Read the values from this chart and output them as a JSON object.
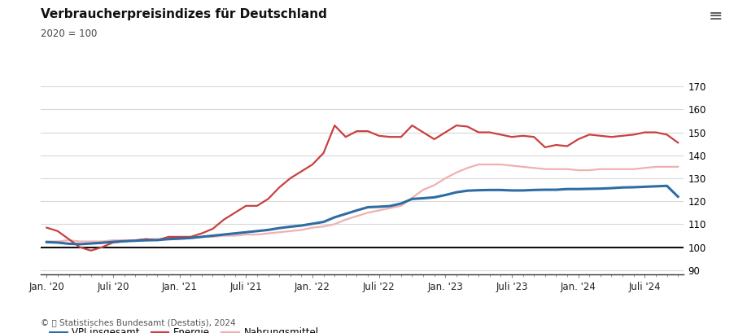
{
  "title": "Verbraucherpreisindizes für Deutschland",
  "subtitle": "2020 = 100",
  "ylim": [
    88,
    175
  ],
  "yticks": [
    90,
    100,
    110,
    120,
    130,
    140,
    150,
    160,
    170
  ],
  "bg_color": "#ffffff",
  "grid_color": "#d8d8d8",
  "vpi_color": "#2e6da4",
  "energie_color": "#c94040",
  "nahrung_color": "#f0b0b0",
  "line_color_100": "#111111",
  "legend_labels": [
    "VPI insgesamt",
    "Energie",
    "Nahrungsmittel"
  ],
  "vpi": [
    102.2,
    102.0,
    101.5,
    101.3,
    101.6,
    101.9,
    102.3,
    102.6,
    102.8,
    103.0,
    103.1,
    103.5,
    103.7,
    104.0,
    104.5,
    105.0,
    105.5,
    106.0,
    106.5,
    107.0,
    107.5,
    108.3,
    108.9,
    109.4,
    110.2,
    111.0,
    113.0,
    114.5,
    116.0,
    117.4,
    117.6,
    117.9,
    119.0,
    121.0,
    121.3,
    121.7,
    122.7,
    123.9,
    124.6,
    124.8,
    124.9,
    124.9,
    124.7,
    124.7,
    124.9,
    125.0,
    125.0,
    125.3,
    125.3,
    125.4,
    125.5,
    125.7,
    126.0,
    126.1,
    126.3,
    126.5,
    126.7,
    122.0
  ],
  "energie": [
    108.5,
    107.0,
    103.5,
    100.0,
    98.5,
    100.0,
    102.0,
    102.5,
    103.0,
    103.5,
    103.0,
    104.5,
    104.5,
    104.5,
    106.0,
    108.0,
    112.0,
    115.0,
    118.0,
    118.0,
    121.0,
    126.0,
    130.0,
    133.0,
    136.0,
    141.0,
    153.0,
    148.0,
    150.5,
    150.5,
    148.5,
    148.0,
    148.0,
    153.0,
    150.0,
    147.0,
    150.0,
    153.0,
    152.5,
    150.0,
    150.0,
    149.0,
    148.0,
    148.5,
    148.0,
    143.5,
    144.5,
    144.0,
    147.0,
    149.0,
    148.5,
    148.0,
    148.5,
    149.0,
    150.0,
    150.0,
    149.0,
    145.5
  ],
  "nahrung": [
    102.5,
    102.5,
    103.0,
    102.5,
    102.5,
    102.5,
    103.0,
    103.0,
    103.0,
    103.5,
    103.5,
    104.0,
    104.0,
    104.0,
    104.5,
    104.5,
    105.0,
    105.0,
    105.5,
    105.5,
    106.0,
    106.5,
    107.0,
    107.5,
    108.5,
    109.0,
    110.0,
    112.0,
    113.5,
    115.0,
    116.0,
    117.0,
    118.0,
    121.5,
    125.0,
    127.0,
    130.0,
    132.5,
    134.5,
    136.0,
    136.0,
    136.0,
    135.5,
    135.0,
    134.5,
    134.0,
    134.0,
    134.0,
    133.5,
    133.5,
    134.0,
    134.0,
    134.0,
    134.0,
    134.5,
    135.0,
    135.0,
    135.0
  ],
  "xtick_positions": [
    0,
    6,
    12,
    18,
    24,
    30,
    36,
    42,
    48,
    54
  ],
  "xtick_labels": [
    "Jan. '20",
    "Juli '20",
    "Jan. '21",
    "Juli '21",
    "Jan. '22",
    "Juli '22",
    "Jan. '23",
    "Juli '23",
    "Jan. '24",
    "Juli '24"
  ]
}
